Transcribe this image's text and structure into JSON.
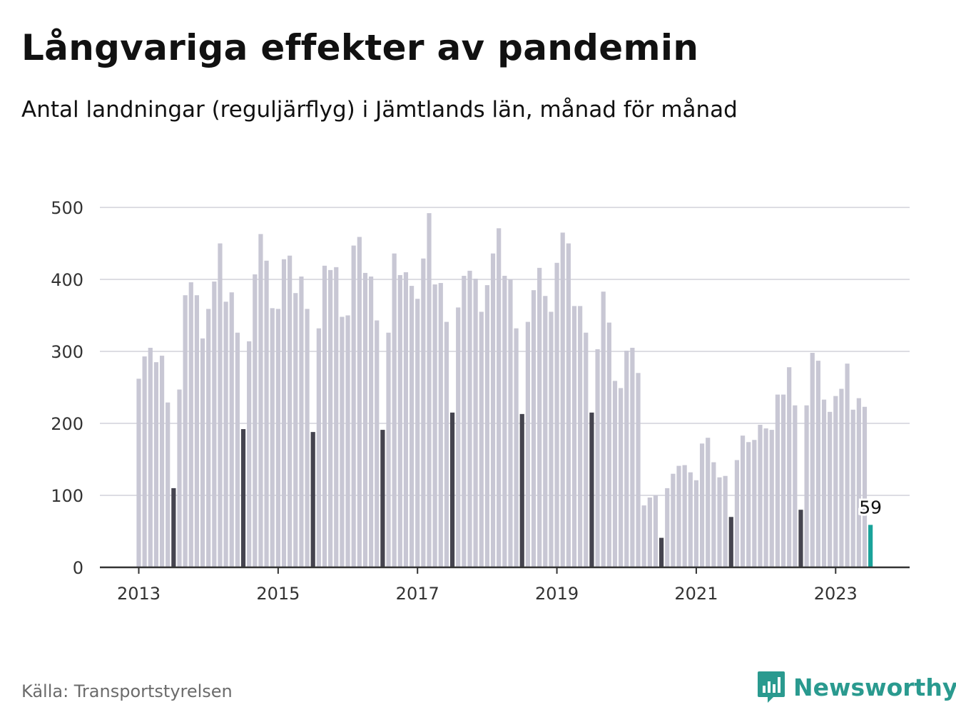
{
  "title": "Långvariga effekter av pandemin",
  "subtitle": "Antal landningar (reguljärflyg) i Jämtlands län, månad för månad",
  "source": "Källa: Transportstyrelsen",
  "brand": "Newsworthy",
  "colors": {
    "bar": "#c8c7d4",
    "july_bar": "#45444f",
    "latest_bar": "#1aa39a",
    "grid": "#dddde3",
    "axis": "#333333",
    "brand": "#2a9a8f"
  },
  "chart_data": {
    "type": "bar",
    "x_start": "2013-01",
    "x_end": "2023-07",
    "highlight_month": 7,
    "latest_label": "59",
    "xlabel": "",
    "ylabel": "",
    "ylim": [
      0,
      500
    ],
    "yticks": [
      0,
      100,
      200,
      300,
      400,
      500
    ],
    "xticks": [
      "2013",
      "2015",
      "2017",
      "2019",
      "2021",
      "2023"
    ],
    "grid": true,
    "values": [
      262,
      293,
      305,
      285,
      294,
      229,
      110,
      247,
      378,
      396,
      378,
      318,
      359,
      397,
      450,
      369,
      382,
      326,
      192,
      314,
      407,
      463,
      426,
      360,
      359,
      428,
      433,
      381,
      404,
      359,
      188,
      332,
      419,
      413,
      417,
      348,
      350,
      447,
      459,
      409,
      404,
      343,
      191,
      326,
      436,
      406,
      410,
      391,
      373,
      429,
      492,
      393,
      395,
      341,
      215,
      361,
      405,
      412,
      401,
      355,
      392,
      436,
      471,
      405,
      400,
      332,
      213,
      341,
      385,
      416,
      377,
      355,
      423,
      465,
      450,
      363,
      363,
      326,
      215,
      303,
      383,
      340,
      259,
      249,
      301,
      305,
      270,
      86,
      97,
      100,
      41,
      110,
      130,
      141,
      142,
      132,
      121,
      172,
      180,
      146,
      125,
      127,
      70,
      149,
      183,
      174,
      177,
      198,
      193,
      191,
      240,
      240,
      278,
      225,
      80,
      225,
      298,
      287,
      233,
      216,
      238,
      248,
      283,
      219,
      235,
      223,
      59
    ]
  }
}
